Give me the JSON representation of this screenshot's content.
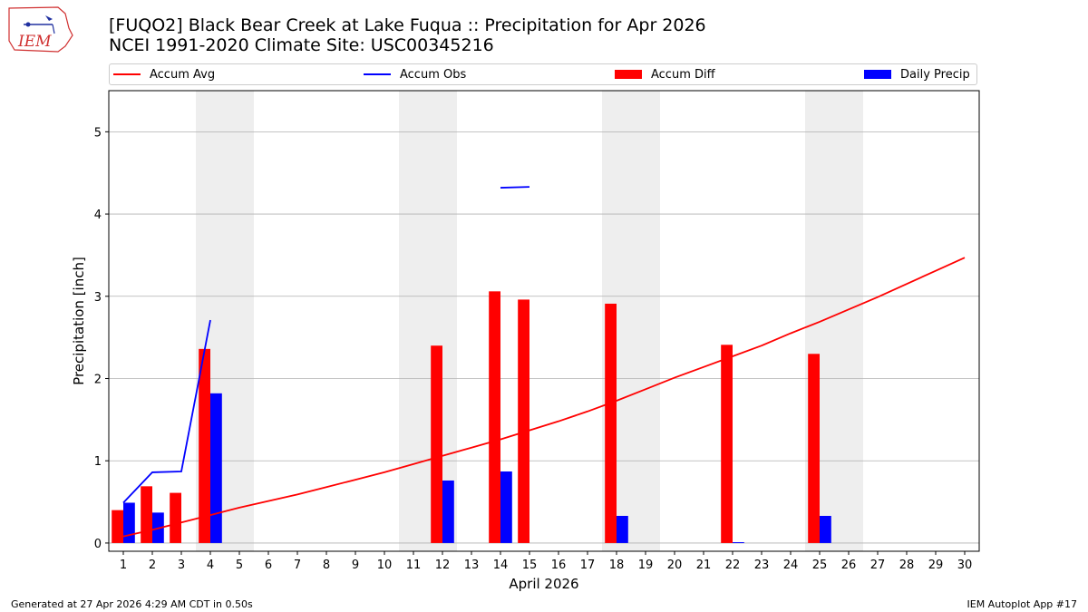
{
  "header": {
    "title_line1": "[FUQO2] Black Bear Creek at Lake Fuqua :: Precipitation for Apr 2026",
    "title_line2": "NCEI 1991-2020 Climate Site: USC00345216"
  },
  "logo": {
    "text": "IEM"
  },
  "footer": {
    "generated": "Generated at 27 Apr 2026 4:29 AM CDT in 0.50s",
    "app": "IEM Autoplot App #17"
  },
  "chart_data": {
    "type": "bar",
    "xlabel": "April 2026",
    "ylabel": "Precipitation [inch]",
    "ylim": [
      -0.1,
      5.5
    ],
    "xlim": [
      0.5,
      30.5
    ],
    "x_ticks": [
      1,
      2,
      3,
      4,
      5,
      6,
      7,
      8,
      9,
      10,
      11,
      12,
      13,
      14,
      15,
      16,
      17,
      18,
      19,
      20,
      21,
      22,
      23,
      24,
      25,
      26,
      27,
      28,
      29,
      30
    ],
    "y_ticks": [
      0,
      1,
      2,
      3,
      4,
      5
    ],
    "grid": "horizontal",
    "legend_position": "top",
    "weekend_shading": [
      [
        3.5,
        5.5
      ],
      [
        10.5,
        12.5
      ],
      [
        17.5,
        19.5
      ],
      [
        24.5,
        26.5
      ]
    ],
    "colors": {
      "avg": "#ff0000",
      "obs": "#0000ff",
      "diff": "#ff0000",
      "daily": "#0000ff",
      "shade": "#eeeeee",
      "grid": "#b0b0b0"
    },
    "series": [
      {
        "name": "Accum Avg",
        "kind": "line",
        "color": "#ff0000",
        "x": [
          1,
          2,
          3,
          4,
          5,
          6,
          7,
          8,
          9,
          10,
          11,
          12,
          13,
          14,
          15,
          16,
          17,
          18,
          19,
          20,
          21,
          22,
          23,
          24,
          25,
          26,
          27,
          28,
          29,
          30
        ],
        "values": [
          0.08,
          0.16,
          0.25,
          0.34,
          0.43,
          0.51,
          0.59,
          0.68,
          0.77,
          0.86,
          0.96,
          1.06,
          1.16,
          1.26,
          1.37,
          1.48,
          1.6,
          1.73,
          1.87,
          2.01,
          2.14,
          2.27,
          2.4,
          2.55,
          2.69,
          2.84,
          2.99,
          3.15,
          3.31,
          3.47
        ]
      },
      {
        "name": "Accum Obs",
        "kind": "line",
        "color": "#0000ff",
        "segments": [
          {
            "x": [
              1,
              2,
              3,
              4
            ],
            "values": [
              0.49,
              0.86,
              0.87,
              2.71
            ]
          },
          {
            "x": [
              14,
              15
            ],
            "values": [
              4.32,
              4.33
            ]
          }
        ]
      },
      {
        "name": "Accum Diff",
        "kind": "bar",
        "color": "#ff0000",
        "x": [
          1,
          2,
          3,
          4,
          12,
          14,
          15,
          18,
          22,
          25
        ],
        "values": [
          0.4,
          0.69,
          0.61,
          2.36,
          2.4,
          3.06,
          2.96,
          2.91,
          2.41,
          2.3
        ]
      },
      {
        "name": "Daily Precip",
        "kind": "bar",
        "color": "#0000ff",
        "x": [
          1,
          2,
          4,
          12,
          14,
          18,
          22,
          25
        ],
        "values": [
          0.49,
          0.37,
          1.82,
          0.76,
          0.87,
          0.33,
          0.01,
          0.33
        ]
      }
    ]
  }
}
